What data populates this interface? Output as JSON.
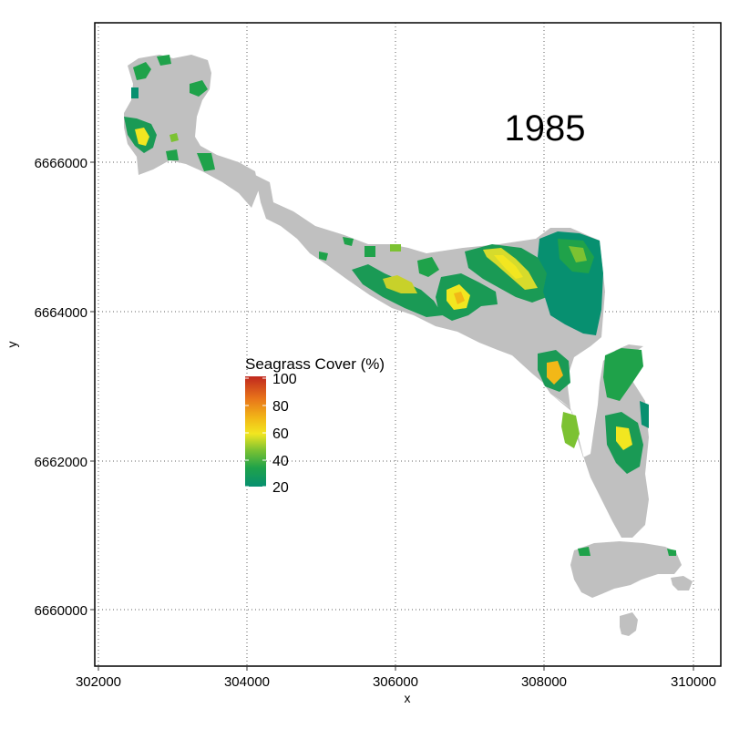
{
  "map": {
    "year_label": "1985",
    "x_axis": {
      "title": "x",
      "ticks": [
        "302000",
        "304000",
        "306000",
        "308000",
        "310000"
      ],
      "range": [
        301950,
        310350
      ]
    },
    "y_axis": {
      "title": "y",
      "ticks": [
        "6660000",
        "6662000",
        "6664000",
        "6666000"
      ],
      "range": [
        6659200,
        6667900
      ]
    },
    "grid": "dotted",
    "land_color": "#c0c0c0",
    "legend": {
      "title": "Seagrass Cover (%)",
      "ticks": [
        "100",
        "80",
        "60",
        "40",
        "20"
      ],
      "range": [
        18,
        100
      ],
      "placement": "center-left",
      "colors": [
        "#c0281e",
        "#e8741a",
        "#f2b817",
        "#f2e620",
        "#7cc232",
        "#1fa24a",
        "#079070"
      ]
    }
  }
}
